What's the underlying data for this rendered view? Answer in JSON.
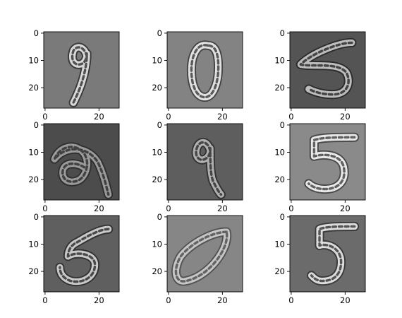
{
  "chart_data": {
    "type": "image_grid",
    "title": "",
    "rows": 3,
    "cols": 3,
    "image_size": [
      28,
      28
    ],
    "colormap": "gray",
    "x_ticks": [
      0,
      20
    ],
    "y_ticks": [
      0,
      10,
      20
    ],
    "panels": [
      {
        "digit": "9",
        "background": "#7a7a7a",
        "ink": "#d8d8d8",
        "ink_dark": "#2f2f2f"
      },
      {
        "digit": "0",
        "background": "#838383",
        "ink": "#e2e2e2",
        "ink_dark": "#3a3a3a"
      },
      {
        "digit": "5",
        "background": "#545454",
        "ink": "#bdbdbd",
        "ink_dark": "#262626"
      },
      {
        "digit": "9",
        "background": "#4c4c4c",
        "ink": "#9a9a9a",
        "ink_dark": "#2a2a2a"
      },
      {
        "digit": "9",
        "background": "#5e5e5e",
        "ink": "#b0b0b0",
        "ink_dark": "#2c2c2c"
      },
      {
        "digit": "5",
        "background": "#8a8a8a",
        "ink": "#e8e8e8",
        "ink_dark": "#3e3e3e"
      },
      {
        "digit": "5",
        "background": "#5f5f5f",
        "ink": "#c9c9c9",
        "ink_dark": "#2b2b2b"
      },
      {
        "digit": "0",
        "background": "#868686",
        "ink": "#c6c6c6",
        "ink_dark": "#4a4a4a"
      },
      {
        "digit": "5",
        "background": "#6b6b6b",
        "ink": "#dcdcdc",
        "ink_dark": "#333333"
      }
    ]
  }
}
